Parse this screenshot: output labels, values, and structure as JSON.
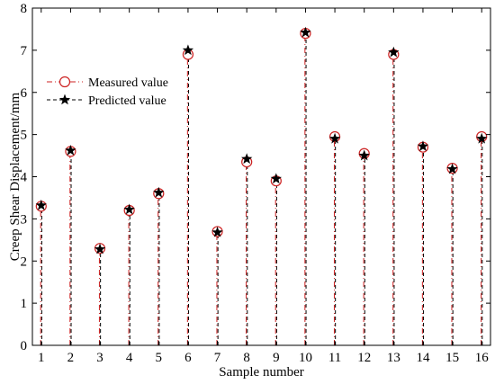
{
  "chart_data": {
    "type": "scatter",
    "title": "",
    "xlabel": "Sample number",
    "ylabel": "Creep Shear Displacement/mm",
    "xlim": [
      0.7,
      16.3
    ],
    "ylim": [
      0,
      8
    ],
    "x_ticks": [
      "1",
      "2",
      "3",
      "4",
      "5",
      "6",
      "7",
      "8",
      "9",
      "10",
      "11",
      "12",
      "13",
      "14",
      "15",
      "16"
    ],
    "y_ticks": [
      "0",
      "1",
      "2",
      "3",
      "4",
      "5",
      "6",
      "7",
      "8"
    ],
    "grid": false,
    "legend_position": "upper-left",
    "x": [
      1,
      2,
      3,
      4,
      5,
      6,
      7,
      8,
      9,
      10,
      11,
      12,
      13,
      14,
      15,
      16
    ],
    "series": [
      {
        "name": "Measured value",
        "marker": "open-circle",
        "line_style": "dash-dot stems",
        "color": "#cc2222",
        "values": [
          3.3,
          4.6,
          2.3,
          3.2,
          3.6,
          6.9,
          2.7,
          4.35,
          3.9,
          7.4,
          4.95,
          4.55,
          6.9,
          4.7,
          4.2,
          4.95
        ]
      },
      {
        "name": "Predicted value",
        "marker": "star",
        "line_style": "dashed stems",
        "color": "#000000",
        "values": [
          3.32,
          4.62,
          2.28,
          3.22,
          3.62,
          7.0,
          2.68,
          4.42,
          3.95,
          7.42,
          4.9,
          4.5,
          6.95,
          4.72,
          4.18,
          4.9
        ]
      }
    ]
  }
}
